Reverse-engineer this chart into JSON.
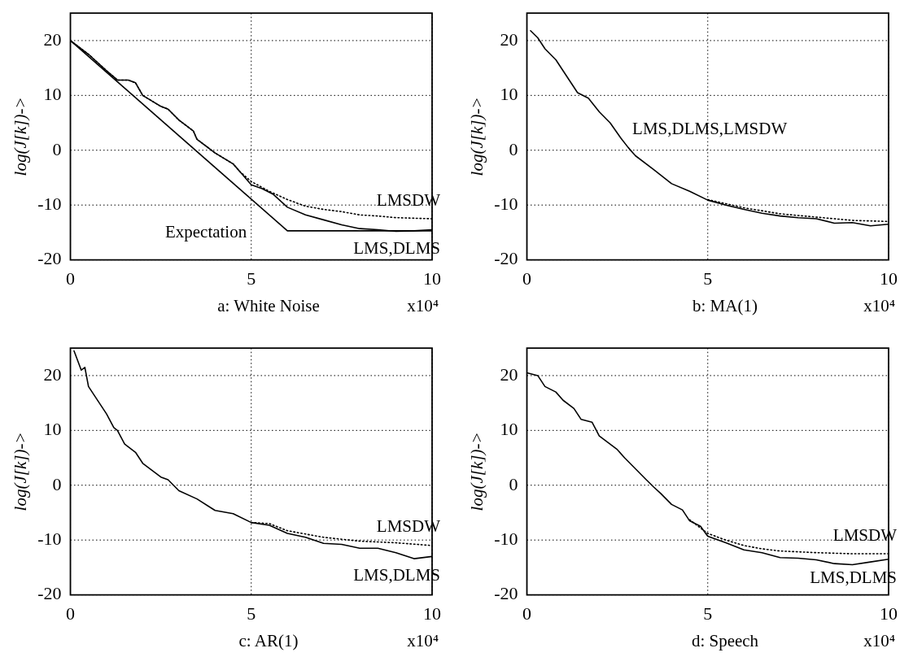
{
  "chart_data": [
    {
      "type": "line",
      "xlabel": "a: White Noise",
      "ylabel": "log(J[k])->",
      "xlim": [
        0,
        10
      ],
      "xticks": [
        0,
        5,
        10
      ],
      "ylim": [
        -20,
        25
      ],
      "yticks": [
        -20,
        -10,
        0,
        10,
        20
      ],
      "grid": true,
      "legend": false,
      "annotations": [
        "x10⁴"
      ],
      "series": [
        {
          "name": "Expectation",
          "color": "#000000",
          "line_style": "solid",
          "x": [
            0,
            6,
            10
          ],
          "values": [
            20,
            -14.7,
            -14.7
          ]
        },
        {
          "name": "LMSDW",
          "color": "#000000",
          "line_style": "dotted",
          "x": [
            0,
            0.5,
            1,
            1.3,
            1.6,
            1.8,
            2,
            2.5,
            2.7,
            3,
            3.4,
            3.5,
            4,
            4.5,
            4.7,
            5,
            5.5,
            6,
            6.5,
            7,
            7.5,
            8,
            8.5,
            9,
            9.5,
            10
          ],
          "values": [
            20,
            17.5,
            14.5,
            12.8,
            12.8,
            12.3,
            10,
            8,
            7.5,
            5.5,
            3.5,
            2,
            -0.5,
            -2.5,
            -4,
            -5.7,
            -7.5,
            -9,
            -10.2,
            -10.8,
            -11.2,
            -11.8,
            -12,
            -12.3,
            -12.4,
            -12.5
          ]
        },
        {
          "name": "LMS,DLMS",
          "color": "#000000",
          "line_style": "solid",
          "x": [
            0,
            0.5,
            1,
            1.3,
            1.6,
            1.8,
            2,
            2.5,
            2.7,
            3,
            3.4,
            3.5,
            4,
            4.5,
            4.7,
            5,
            5.3,
            5.6,
            6,
            6.5,
            7,
            7.5,
            8,
            8.5,
            9,
            9.5,
            10
          ],
          "values": [
            20,
            17.5,
            14.5,
            12.8,
            12.8,
            12.3,
            10,
            8,
            7.5,
            5.5,
            3.5,
            2,
            -0.5,
            -2.5,
            -4,
            -6.3,
            -7,
            -8,
            -10.4,
            -11.8,
            -12.7,
            -13.6,
            -14.3,
            -14.5,
            -14.8,
            -14.7,
            -14.5
          ]
        }
      ]
    },
    {
      "type": "line",
      "xlabel": "b: MA(1)",
      "ylabel": "log(J[k])->",
      "xlim": [
        0,
        10
      ],
      "xticks": [
        0,
        5,
        10
      ],
      "ylim": [
        -20,
        25
      ],
      "yticks": [
        -20,
        -10,
        0,
        10,
        20
      ],
      "grid": true,
      "legend": false,
      "annotations": [
        "x10⁴"
      ],
      "series": [
        {
          "color": "#000000",
          "line_style": "dotted",
          "x": [
            5,
            6,
            7,
            8,
            9,
            10
          ],
          "values": [
            -9,
            -10.5,
            -11.6,
            -12.2,
            -12.8,
            -13
          ]
        },
        {
          "name": "LMS,DLMS,LMSDW",
          "color": "#000000",
          "line_style": "solid",
          "x": [
            0.1,
            0.3,
            0.5,
            0.8,
            1,
            1.2,
            1.4,
            1.7,
            2,
            2.3,
            2.6,
            2.8,
            3,
            3.5,
            4,
            4.5,
            5,
            5.5,
            6,
            6.5,
            7,
            7.5,
            8,
            8.5,
            9,
            9.5,
            10
          ],
          "values": [
            21.8,
            20.5,
            18.5,
            16.5,
            14.5,
            12.5,
            10.5,
            9.5,
            7,
            5,
            2.2,
            0.5,
            -1,
            -3.5,
            -6.1,
            -7.5,
            -9.1,
            -10,
            -10.8,
            -11.5,
            -12,
            -12.3,
            -12.5,
            -13.3,
            -13.2,
            -13.8,
            -13.5
          ]
        }
      ]
    },
    {
      "type": "line",
      "xlabel": "c: AR(1)",
      "ylabel": "log(J[k])->",
      "xlim": [
        0,
        10
      ],
      "xticks": [
        0,
        5,
        10
      ],
      "ylim": [
        -20,
        25
      ],
      "yticks": [
        -20,
        -10,
        0,
        10,
        20
      ],
      "grid": true,
      "legend": false,
      "annotations": [
        "x10⁴"
      ],
      "series": [
        {
          "name": "LMSDW",
          "color": "#000000",
          "line_style": "dotted",
          "x": [
            5,
            5.5,
            6,
            7,
            8,
            9,
            10
          ],
          "values": [
            -6.8,
            -7,
            -8.3,
            -9.5,
            -10.2,
            -10.5,
            -11
          ]
        },
        {
          "name": "LMS,DLMS",
          "color": "#000000",
          "line_style": "solid",
          "x": [
            0.1,
            0.3,
            0.4,
            0.5,
            0.8,
            1,
            1.2,
            1.3,
            1.5,
            1.8,
            2,
            2.5,
            2.7,
            3,
            3.5,
            4,
            4.5,
            5,
            5.5,
            6,
            6.5,
            7,
            7.5,
            8,
            8.5,
            9,
            9.5,
            10
          ],
          "values": [
            24.5,
            21,
            21.5,
            18,
            15,
            13,
            10.5,
            10,
            7.5,
            6,
            4,
            1.5,
            1,
            -1,
            -2.5,
            -4.6,
            -5.2,
            -6.8,
            -7.3,
            -8.8,
            -9.5,
            -10.6,
            -10.8,
            -11.5,
            -11.5,
            -12.3,
            -13.4,
            -13
          ]
        }
      ]
    },
    {
      "type": "line",
      "xlabel": "d: Speech",
      "ylabel": "log(J[k])->",
      "xlim": [
        0,
        10
      ],
      "xticks": [
        0,
        5,
        10
      ],
      "ylim": [
        -20,
        25
      ],
      "yticks": [
        -20,
        -10,
        0,
        10,
        20
      ],
      "grid": true,
      "legend": false,
      "annotations": [
        "x10⁴"
      ],
      "series": [
        {
          "name": "LMSDW",
          "color": "#000000",
          "line_style": "dotted",
          "x": [
            4.5,
            5,
            5.5,
            6,
            6.5,
            7,
            8,
            9,
            10
          ],
          "values": [
            -6.3,
            -8.8,
            -10,
            -11,
            -11.6,
            -12,
            -12.3,
            -12.5,
            -12.5
          ]
        },
        {
          "name": "LMS,DLMS",
          "color": "#000000",
          "line_style": "solid",
          "x": [
            0,
            0.3,
            0.5,
            0.8,
            1,
            1.3,
            1.5,
            1.8,
            2,
            2.5,
            2.7,
            3,
            3.3,
            3.5,
            3.7,
            4,
            4.3,
            4.5,
            4.8,
            5,
            5.5,
            6,
            6.5,
            7,
            7.5,
            8,
            8.5,
            9,
            9.5,
            10
          ],
          "values": [
            20.5,
            20,
            18,
            17,
            15.5,
            14,
            12,
            11.5,
            9,
            6.5,
            5,
            3,
            1,
            -0.3,
            -1.5,
            -3.5,
            -4.5,
            -6.5,
            -7.5,
            -9.3,
            -10.5,
            -11.8,
            -12.3,
            -13.2,
            -13.3,
            -13.6,
            -14.3,
            -14.5,
            -14,
            -13.5
          ]
        }
      ]
    }
  ]
}
